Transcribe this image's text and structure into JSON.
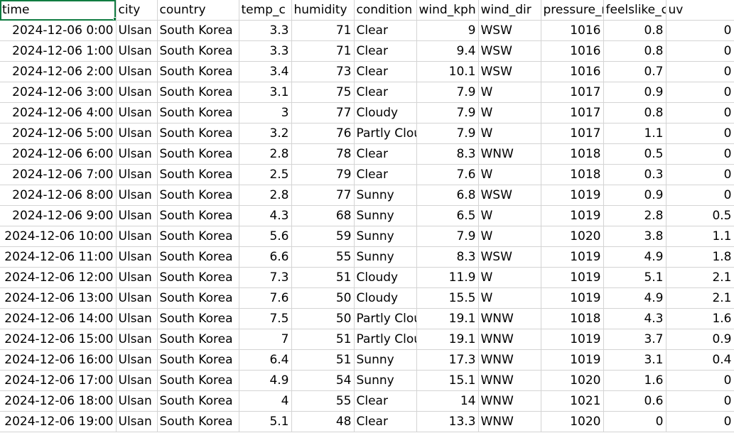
{
  "active_cell": "A1",
  "columns": [
    "time",
    "city",
    "country",
    "temp_c",
    "humidity",
    "condition",
    "wind_kph",
    "wind_dir",
    "pressure_r",
    "feelslike_c",
    "uv"
  ],
  "rows": [
    [
      "2024-12-06 0:00",
      "Ulsan",
      "South Korea",
      "3.3",
      "71",
      "Clear",
      "9",
      "WSW",
      "1016",
      "0.8",
      "0"
    ],
    [
      "2024-12-06 1:00",
      "Ulsan",
      "South Korea",
      "3.3",
      "71",
      "Clear",
      "9.4",
      "WSW",
      "1016",
      "0.8",
      "0"
    ],
    [
      "2024-12-06 2:00",
      "Ulsan",
      "South Korea",
      "3.4",
      "73",
      "Clear",
      "10.1",
      "WSW",
      "1016",
      "0.7",
      "0"
    ],
    [
      "2024-12-06 3:00",
      "Ulsan",
      "South Korea",
      "3.1",
      "75",
      "Clear",
      "7.9",
      "W",
      "1017",
      "0.9",
      "0"
    ],
    [
      "2024-12-06 4:00",
      "Ulsan",
      "South Korea",
      "3",
      "77",
      "Cloudy",
      "7.9",
      "W",
      "1017",
      "0.8",
      "0"
    ],
    [
      "2024-12-06 5:00",
      "Ulsan",
      "South Korea",
      "3.2",
      "76",
      "Partly Clou",
      "7.9",
      "W",
      "1017",
      "1.1",
      "0"
    ],
    [
      "2024-12-06 6:00",
      "Ulsan",
      "South Korea",
      "2.8",
      "78",
      "Clear",
      "8.3",
      "WNW",
      "1018",
      "0.5",
      "0"
    ],
    [
      "2024-12-06 7:00",
      "Ulsan",
      "South Korea",
      "2.5",
      "79",
      "Clear",
      "7.6",
      "W",
      "1018",
      "0.3",
      "0"
    ],
    [
      "2024-12-06 8:00",
      "Ulsan",
      "South Korea",
      "2.8",
      "77",
      "Sunny",
      "6.8",
      "WSW",
      "1019",
      "0.9",
      "0"
    ],
    [
      "2024-12-06 9:00",
      "Ulsan",
      "South Korea",
      "4.3",
      "68",
      "Sunny",
      "6.5",
      "W",
      "1019",
      "2.8",
      "0.5"
    ],
    [
      "2024-12-06 10:00",
      "Ulsan",
      "South Korea",
      "5.6",
      "59",
      "Sunny",
      "7.9",
      "W",
      "1020",
      "3.8",
      "1.1"
    ],
    [
      "2024-12-06 11:00",
      "Ulsan",
      "South Korea",
      "6.6",
      "55",
      "Sunny",
      "8.3",
      "WSW",
      "1019",
      "4.9",
      "1.8"
    ],
    [
      "2024-12-06 12:00",
      "Ulsan",
      "South Korea",
      "7.3",
      "51",
      "Cloudy",
      "11.9",
      "W",
      "1019",
      "5.1",
      "2.1"
    ],
    [
      "2024-12-06 13:00",
      "Ulsan",
      "South Korea",
      "7.6",
      "50",
      "Cloudy",
      "15.5",
      "W",
      "1019",
      "4.9",
      "2.1"
    ],
    [
      "2024-12-06 14:00",
      "Ulsan",
      "South Korea",
      "7.5",
      "50",
      "Partly Clou",
      "19.1",
      "WNW",
      "1018",
      "4.3",
      "1.6"
    ],
    [
      "2024-12-06 15:00",
      "Ulsan",
      "South Korea",
      "7",
      "51",
      "Partly Clou",
      "19.1",
      "WNW",
      "1019",
      "3.7",
      "0.9"
    ],
    [
      "2024-12-06 16:00",
      "Ulsan",
      "South Korea",
      "6.4",
      "51",
      "Sunny",
      "17.3",
      "WNW",
      "1019",
      "3.1",
      "0.4"
    ],
    [
      "2024-12-06 17:00",
      "Ulsan",
      "South Korea",
      "4.9",
      "54",
      "Sunny",
      "15.1",
      "WNW",
      "1020",
      "1.6",
      "0"
    ],
    [
      "2024-12-06 18:00",
      "Ulsan",
      "South Korea",
      "4",
      "55",
      "Clear",
      "14",
      "WNW",
      "1021",
      "0.6",
      "0"
    ],
    [
      "2024-12-06 19:00",
      "Ulsan",
      "South Korea",
      "5.1",
      "48",
      "Clear",
      "13.3",
      "WNW",
      "1020",
      "0",
      "0"
    ]
  ],
  "colors": {
    "gridline": "#d4d4d4",
    "selection": "#107c41",
    "background": "#ffffff",
    "text": "#000000"
  }
}
